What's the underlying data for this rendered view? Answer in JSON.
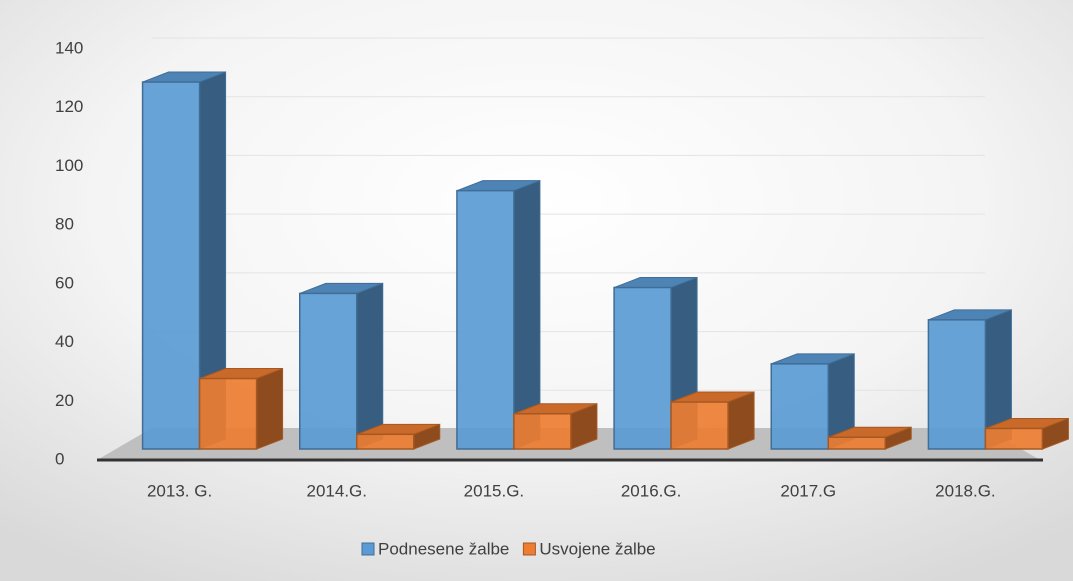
{
  "chart_data": {
    "type": "bar3d",
    "categories": [
      "2013. G.",
      "2014.G.",
      "2015.G.",
      "2016.G.",
      "2017.G",
      "2018.G."
    ],
    "series": [
      {
        "name": "Podnesene žalbe",
        "color": "#5b9bd5",
        "values": [
          125,
          53,
          88,
          55,
          29,
          44
        ]
      },
      {
        "name": "Usvojene žalbe",
        "color": "#ed7d31",
        "values": [
          24,
          5,
          12,
          16,
          4,
          7
        ]
      }
    ],
    "ylim": [
      0,
      140
    ],
    "yticks": [
      0,
      20,
      40,
      60,
      80,
      100,
      120,
      140
    ],
    "grid": true,
    "legend": "bottom"
  }
}
